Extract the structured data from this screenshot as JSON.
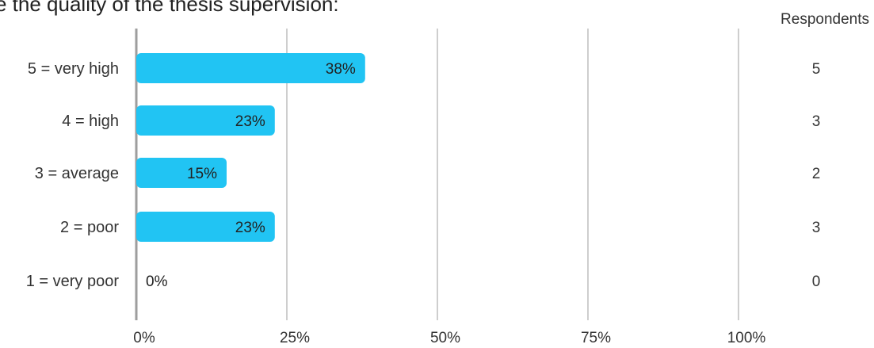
{
  "header": {
    "title": "e the quality of the thesis supervision:",
    "respondents_label": "Respondents"
  },
  "colors": {
    "bar": "#21c4f3",
    "grid": "#9e9e9e",
    "axis": "#9e9e9e"
  },
  "chart_data": {
    "type": "bar",
    "orientation": "horizontal",
    "title": "e the quality of the thesis supervision:",
    "categories": [
      "5 = very high",
      "4 = high",
      "3 = average",
      "2 = poor",
      "1 = very poor"
    ],
    "values": [
      38,
      23,
      15,
      23,
      0
    ],
    "value_labels": [
      "38%",
      "23%",
      "15%",
      "23%",
      "0%"
    ],
    "respondents": [
      5,
      3,
      2,
      3,
      0
    ],
    "xlim": [
      0,
      100
    ],
    "x_ticks": [
      0,
      25,
      50,
      75,
      100
    ],
    "x_tick_labels": [
      "0%",
      "25%",
      "50%",
      "75%",
      "100%"
    ],
    "grid": true,
    "legend": "none"
  }
}
